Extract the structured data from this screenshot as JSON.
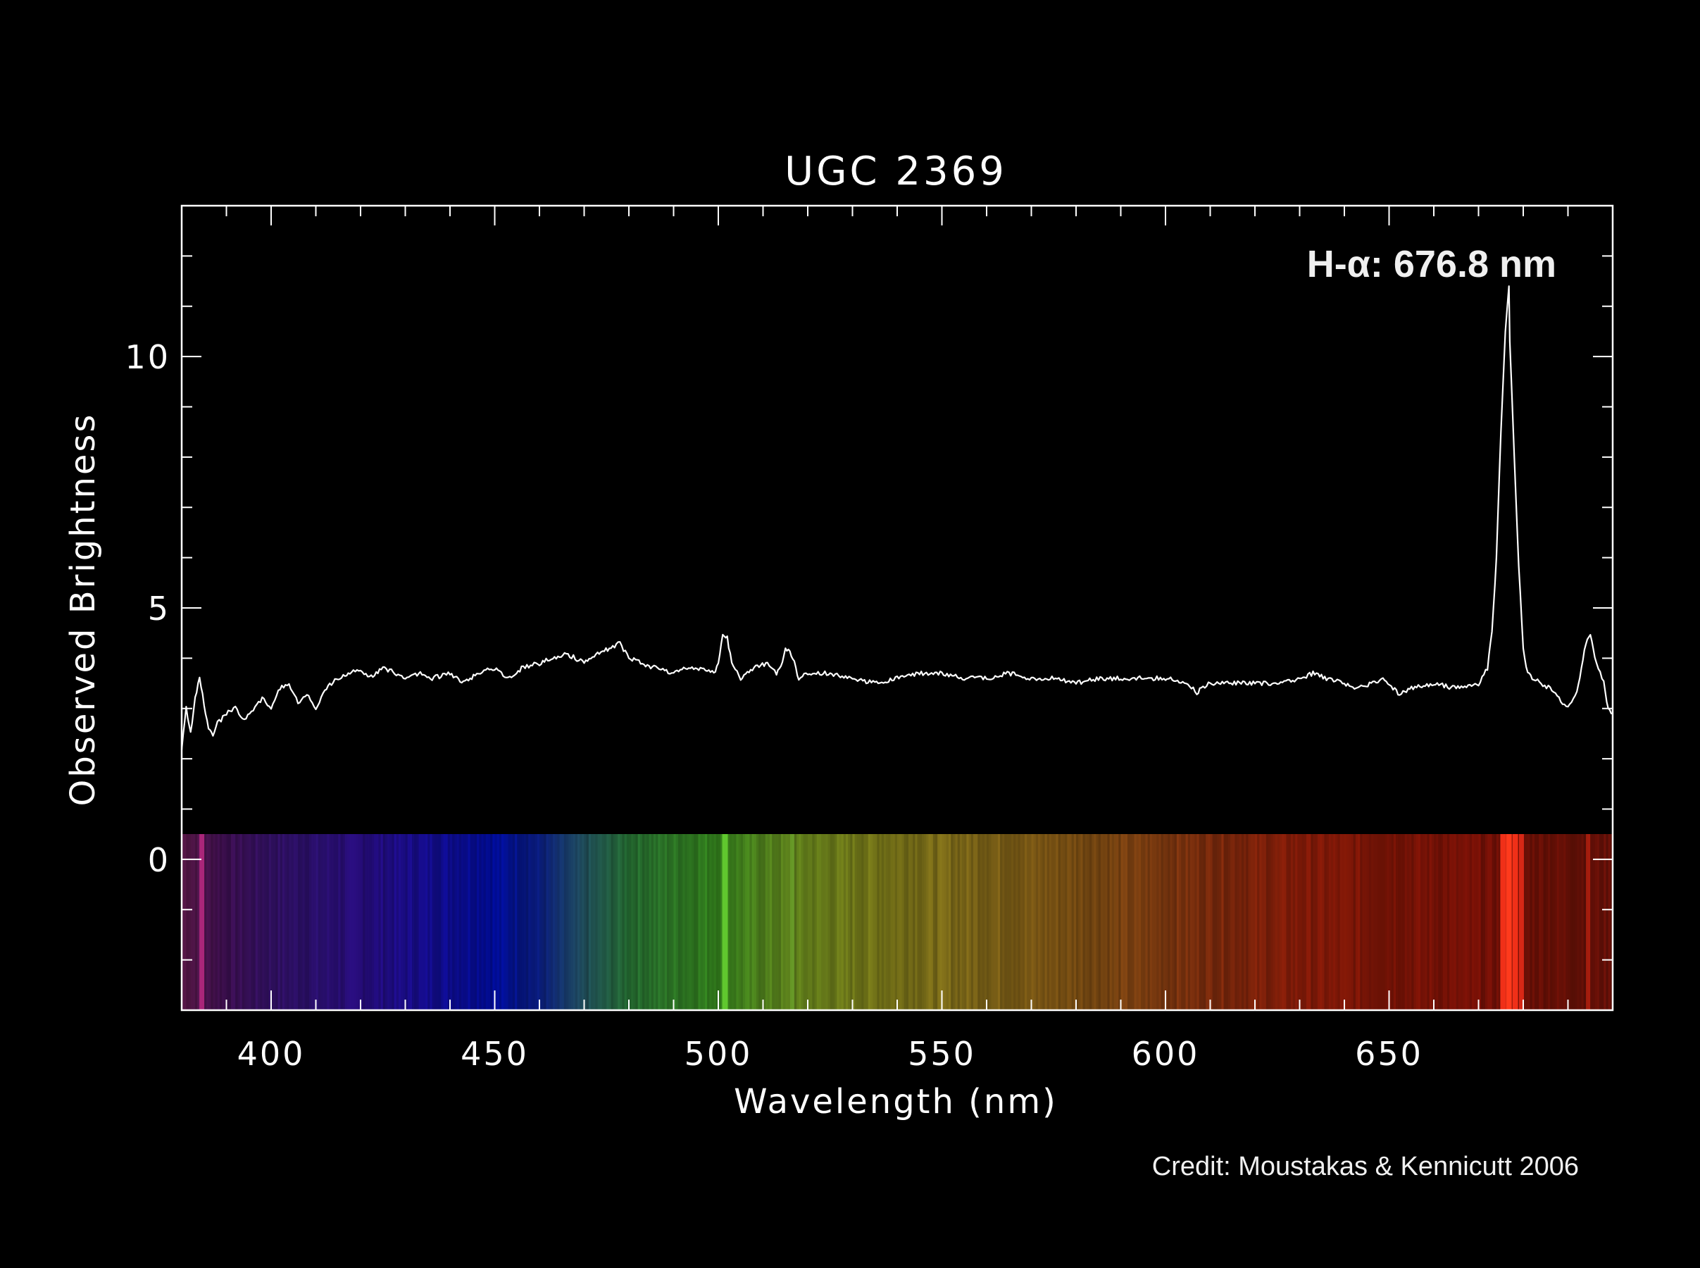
{
  "chart_data": {
    "type": "line",
    "title": "UGC 2369",
    "xlabel": "Wavelength (nm)",
    "ylabel": "Observed Brightness",
    "xlim": [
      380,
      700
    ],
    "ylim": [
      -3,
      13
    ],
    "x_ticks": [
      400,
      450,
      500,
      550,
      600,
      650
    ],
    "y_ticks": [
      0,
      5,
      10
    ],
    "x_minor_step": 10,
    "y_minor_step": 1,
    "annotation": "H-α: 676.8 nm",
    "annotation_x": 676.8,
    "credit": "Credit: Moustakas & Kennicutt 2006",
    "grid": false,
    "series": [
      {
        "values_x": [
          380,
          381,
          382,
          383,
          384,
          385,
          386,
          387,
          388,
          390,
          392,
          394,
          396,
          398,
          400,
          402,
          404,
          406,
          408,
          410,
          412,
          415,
          418,
          420,
          422,
          425,
          428,
          430,
          433,
          436,
          440,
          443,
          446,
          450,
          453,
          456,
          460,
          463,
          466,
          470,
          473,
          476,
          478,
          480,
          483,
          486,
          490,
          493,
          496,
          499,
          500,
          501,
          502,
          503,
          505,
          508,
          511,
          513,
          514,
          515,
          516,
          517,
          518,
          520,
          525,
          530,
          535,
          540,
          545,
          550,
          555,
          560,
          565,
          570,
          575,
          580,
          585,
          590,
          595,
          600,
          605,
          607,
          608,
          610,
          615,
          620,
          625,
          630,
          633,
          636,
          640,
          643,
          646,
          649,
          652,
          655,
          660,
          665,
          670,
          672,
          673,
          674,
          675,
          676,
          676.8,
          677,
          678,
          679,
          680,
          681,
          682,
          684,
          686,
          688,
          690,
          692,
          693,
          694,
          695,
          696,
          698,
          699,
          700
        ],
        "values_y": [
          2.2,
          3.0,
          2.5,
          3.2,
          3.6,
          3.1,
          2.6,
          2.5,
          2.7,
          2.9,
          3.0,
          2.8,
          3.0,
          3.2,
          3.0,
          3.4,
          3.5,
          3.1,
          3.3,
          3.0,
          3.4,
          3.6,
          3.7,
          3.8,
          3.6,
          3.8,
          3.7,
          3.6,
          3.7,
          3.6,
          3.7,
          3.5,
          3.7,
          3.8,
          3.6,
          3.8,
          3.9,
          4.0,
          4.1,
          3.9,
          4.1,
          4.2,
          4.3,
          4.0,
          3.9,
          3.8,
          3.7,
          3.8,
          3.8,
          3.7,
          3.9,
          4.5,
          4.4,
          3.9,
          3.6,
          3.8,
          3.9,
          3.7,
          3.8,
          4.2,
          4.1,
          3.9,
          3.6,
          3.7,
          3.7,
          3.6,
          3.5,
          3.6,
          3.7,
          3.7,
          3.6,
          3.6,
          3.7,
          3.6,
          3.6,
          3.5,
          3.6,
          3.6,
          3.6,
          3.6,
          3.5,
          3.3,
          3.4,
          3.5,
          3.5,
          3.5,
          3.5,
          3.6,
          3.7,
          3.6,
          3.5,
          3.4,
          3.5,
          3.6,
          3.3,
          3.4,
          3.5,
          3.4,
          3.5,
          3.8,
          4.5,
          6.0,
          8.5,
          10.5,
          11.4,
          10.3,
          8.0,
          5.8,
          4.2,
          3.7,
          3.6,
          3.5,
          3.4,
          3.2,
          3.0,
          3.3,
          3.8,
          4.3,
          4.5,
          4.0,
          3.5,
          3.0,
          2.9
        ]
      }
    ],
    "spectrum_colors": {
      "stops": [
        [
          380,
          "#5a1848"
        ],
        [
          390,
          "#3a0e4e"
        ],
        [
          400,
          "#301060"
        ],
        [
          410,
          "#2a0f6c"
        ],
        [
          420,
          "#260c78"
        ],
        [
          435,
          "#140c8c"
        ],
        [
          450,
          "#000c99"
        ],
        [
          460,
          "#0a1c7a"
        ],
        [
          470,
          "#1e4a56"
        ],
        [
          480,
          "#246a30"
        ],
        [
          490,
          "#2c7424"
        ],
        [
          500,
          "#33801c"
        ],
        [
          510,
          "#4e7e1c"
        ],
        [
          520,
          "#627c1a"
        ],
        [
          535,
          "#737318"
        ],
        [
          550,
          "#7a6a18"
        ],
        [
          565,
          "#7a5c16"
        ],
        [
          580,
          "#774c12"
        ],
        [
          595,
          "#783c10"
        ],
        [
          610,
          "#7a2a0c"
        ],
        [
          630,
          "#801a08"
        ],
        [
          650,
          "#7a1406"
        ],
        [
          670,
          "#741006"
        ],
        [
          690,
          "#661006"
        ],
        [
          700,
          "#661008"
        ]
      ],
      "bright_lines": [
        {
          "x": 384.5,
          "color": "#b2287e",
          "strength": 0.8
        },
        {
          "x": 501.5,
          "color": "#60c82e",
          "strength": 1.0
        },
        {
          "x": 516.5,
          "color": "#6aa02a",
          "strength": 0.6
        },
        {
          "x": 675.5,
          "color": "#f03018",
          "strength": 1.0
        },
        {
          "x": 676.8,
          "color": "#ff3a1c",
          "strength": 1.0
        },
        {
          "x": 678.2,
          "color": "#f03018",
          "strength": 1.0
        },
        {
          "x": 679.6,
          "color": "#e02a18",
          "strength": 0.8
        },
        {
          "x": 694.5,
          "color": "#b22010",
          "strength": 0.6
        }
      ]
    }
  }
}
